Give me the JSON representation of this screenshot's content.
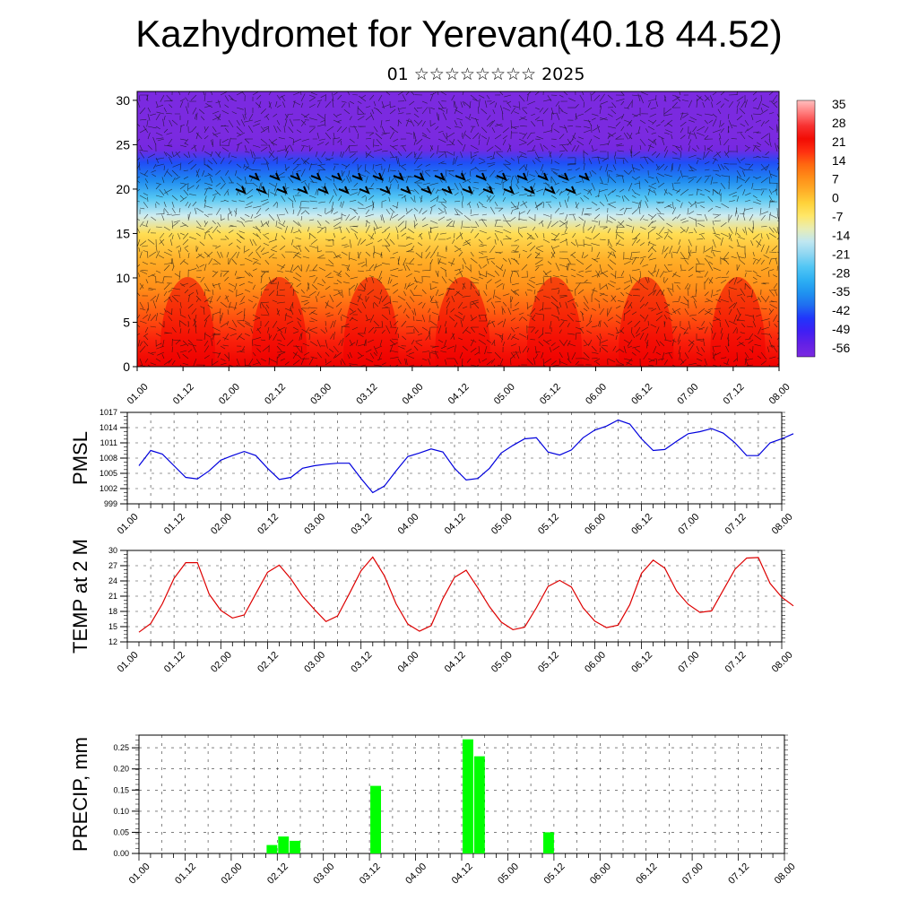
{
  "title": "Kazhydromet for Yerevan(40.18 44.52)",
  "subtitle": "01 ☆☆☆☆☆☆☆☆ 2025",
  "chart_data": [
    {
      "type": "heatmap",
      "y_ticks": [
        0,
        5,
        10,
        15,
        20,
        25,
        30
      ],
      "ylim": [
        0,
        31
      ],
      "x_ticks": [
        "01.00",
        "01.12",
        "02.00",
        "02.12",
        "03.00",
        "03.12",
        "04.00",
        "04.12",
        "05.00",
        "05.12",
        "06.00",
        "06.12",
        "07.00",
        "07.12",
        "08.00"
      ],
      "colorbar": {
        "labels": [
          "35",
          "28",
          "21",
          "14",
          "7",
          "0",
          "-7",
          "-14",
          "-21",
          "-28",
          "-35",
          "-42",
          "-49",
          "-56"
        ],
        "range": [
          -63,
          42
        ]
      },
      "profile_altitude": [
        0,
        3,
        6,
        9,
        12,
        15,
        17,
        19,
        21,
        23,
        24.5,
        26,
        28,
        31
      ],
      "profile_value": [
        28,
        23,
        17,
        10,
        5,
        -3,
        -14,
        -26,
        -38,
        -45,
        -62,
        -63,
        -63,
        -63
      ],
      "overlay": "wind barbs"
    },
    {
      "type": "line",
      "ylabel": "PMSL",
      "ylim": [
        999,
        1017
      ],
      "y_ticks": [
        999,
        1002,
        1005,
        1008,
        1011,
        1014,
        1017
      ],
      "x_ticks": [
        "01.00",
        "01.12",
        "02.00",
        "02.12",
        "03.00",
        "03.12",
        "04.00",
        "04.12",
        "05.00",
        "05.12",
        "06.00",
        "06.12",
        "07.00",
        "07.12",
        "08.00"
      ],
      "color": "#0000dd",
      "values": [
        1006.5,
        1009.5,
        1008.8,
        1006.5,
        1004.2,
        1003.9,
        1005.5,
        1007.6,
        1008.5,
        1009.3,
        1008.5,
        1006,
        1003.8,
        1004.2,
        1006,
        1006.5,
        1006.8,
        1007,
        1007,
        1004,
        1001.2,
        1002.5,
        1005.5,
        1008.3,
        1009,
        1009.8,
        1009.2,
        1006,
        1003.7,
        1004,
        1006,
        1009,
        1010.5,
        1011.8,
        1012,
        1009.2,
        1008.6,
        1009.6,
        1012,
        1013.5,
        1014.3,
        1015.5,
        1014.7,
        1011.8,
        1009.5,
        1009.7,
        1011.3,
        1012.8,
        1013.2,
        1013.8,
        1012.9,
        1011,
        1008.5,
        1008.5,
        1011,
        1011.8,
        1012.8
      ]
    },
    {
      "type": "line",
      "ylabel": "TEMP at 2 M",
      "ylim": [
        12,
        30
      ],
      "y_ticks": [
        12,
        15,
        18,
        21,
        24,
        27,
        30
      ],
      "x_ticks": [
        "01.00",
        "01.12",
        "02.00",
        "02.12",
        "03.00",
        "03.12",
        "04.00",
        "04.12",
        "05.00",
        "05.12",
        "06.00",
        "06.12",
        "07.00",
        "07.12",
        "08.00"
      ],
      "color": "#dd0000",
      "values": [
        13.9,
        15.6,
        19.5,
        24.5,
        27.6,
        27.6,
        21.4,
        18.2,
        16.7,
        17.3,
        21.5,
        25.7,
        27.1,
        24.4,
        21,
        18.4,
        16,
        17.1,
        21.5,
        26,
        28.7,
        25,
        19.5,
        15.5,
        14.1,
        15.2,
        20.5,
        24.7,
        26.1,
        22.6,
        18.9,
        15.9,
        14.4,
        14.9,
        18.7,
        22.9,
        24.1,
        22.8,
        18.7,
        16.1,
        14.8,
        15.3,
        19.3,
        25.5,
        28.1,
        26.5,
        22,
        19.4,
        17.8,
        18.1,
        22.2,
        26.3,
        28.5,
        28.6,
        23.5,
        20.8,
        19.1
      ]
    },
    {
      "type": "bar",
      "ylabel": "PRECIP, mm",
      "ylim": [
        0,
        0.28
      ],
      "y_ticks": [
        "0.00",
        "0.05",
        "0.10",
        "0.15",
        "0.20",
        "0.25"
      ],
      "x_ticks": [
        "01.00",
        "01.12",
        "02.00",
        "02.12",
        "03.00",
        "03.12",
        "04.00",
        "04.12",
        "05.00",
        "05.12",
        "06.00",
        "06.12",
        "07.00",
        "07.12",
        "08.00"
      ],
      "color": "#00ff00",
      "bars": [
        {
          "t": 11.5,
          "value": 0.02
        },
        {
          "t": 12.5,
          "value": 0.04
        },
        {
          "t": 13.5,
          "value": 0.03
        },
        {
          "t": 20.5,
          "value": 0.16
        },
        {
          "t": 28.5,
          "value": 0.27
        },
        {
          "t": 29.5,
          "value": 0.23
        },
        {
          "t": 35.5,
          "value": 0.05
        }
      ]
    }
  ]
}
